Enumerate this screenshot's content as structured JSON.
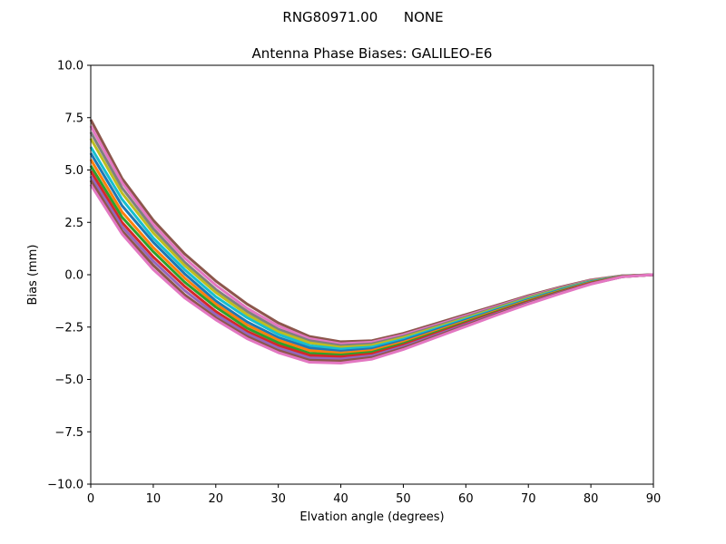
{
  "figure": {
    "suptitle": "RNG80971.00      NONE",
    "background": "#ffffff"
  },
  "chart_data": {
    "type": "line",
    "title": "Antenna Phase Biases: GALILEO-E6",
    "xlabel": "Elvation angle (degrees)",
    "ylabel": "Bias (mm)",
    "xlim": [
      0,
      90
    ],
    "ylim": [
      -10,
      10
    ],
    "xticks": [
      0,
      10,
      20,
      30,
      40,
      50,
      60,
      70,
      80,
      90
    ],
    "xtick_labels": [
      "0",
      "10",
      "20",
      "30",
      "40",
      "50",
      "60",
      "70",
      "80",
      "90"
    ],
    "yticks": [
      -10,
      -7.5,
      -5,
      -2.5,
      0,
      2.5,
      5,
      7.5,
      10
    ],
    "ytick_labels": [
      "−10.0",
      "−7.5",
      "−5.0",
      "−2.5",
      "0.0",
      "2.5",
      "5.0",
      "7.5",
      "10.0"
    ],
    "grid": false,
    "legend": "none",
    "x": [
      0,
      5,
      10,
      15,
      20,
      25,
      30,
      35,
      40,
      45,
      50,
      55,
      60,
      65,
      70,
      75,
      80,
      85,
      90
    ],
    "series": [
      {
        "color": "#8c564b",
        "values": [
          7.4,
          4.6,
          2.6,
          1.0,
          -0.3,
          -1.4,
          -2.3,
          -2.95,
          -3.2,
          -3.15,
          -2.8,
          -2.35,
          -1.9,
          -1.45,
          -1.0,
          -0.6,
          -0.25,
          -0.05,
          0.0
        ]
      },
      {
        "color": "#e377c2",
        "values": [
          7.1,
          4.4,
          2.4,
          0.8,
          -0.5,
          -1.6,
          -2.45,
          -3.05,
          -3.3,
          -3.22,
          -2.87,
          -2.42,
          -1.96,
          -1.5,
          -1.04,
          -0.63,
          -0.27,
          -0.06,
          0.0
        ]
      },
      {
        "color": "#7f7f7f",
        "values": [
          6.8,
          4.15,
          2.2,
          0.6,
          -0.7,
          -1.75,
          -2.6,
          -3.15,
          -3.38,
          -3.3,
          -2.94,
          -2.48,
          -2.02,
          -1.55,
          -1.08,
          -0.66,
          -0.29,
          -0.06,
          0.0
        ]
      },
      {
        "color": "#bcbd22",
        "values": [
          6.5,
          3.9,
          2.0,
          0.45,
          -0.85,
          -1.9,
          -2.72,
          -3.25,
          -3.46,
          -3.37,
          -3.0,
          -2.54,
          -2.07,
          -1.6,
          -1.12,
          -0.69,
          -0.31,
          -0.07,
          0.0
        ]
      },
      {
        "color": "#17becf",
        "values": [
          6.1,
          3.6,
          1.75,
          0.25,
          -1.05,
          -2.05,
          -2.85,
          -3.38,
          -3.55,
          -3.45,
          -3.08,
          -2.6,
          -2.12,
          -1.64,
          -1.16,
          -0.72,
          -0.33,
          -0.07,
          0.0
        ]
      },
      {
        "color": "#1f77b4",
        "values": [
          5.8,
          3.3,
          1.55,
          0.05,
          -1.25,
          -2.25,
          -3.0,
          -3.5,
          -3.65,
          -3.54,
          -3.15,
          -2.66,
          -2.17,
          -1.68,
          -1.2,
          -0.75,
          -0.35,
          -0.08,
          0.0
        ]
      },
      {
        "color": "#ff7f0e",
        "values": [
          5.5,
          3.0,
          1.3,
          -0.15,
          -1.4,
          -2.4,
          -3.12,
          -3.62,
          -3.74,
          -3.62,
          -3.22,
          -2.72,
          -2.22,
          -1.72,
          -1.23,
          -0.78,
          -0.37,
          -0.08,
          0.0
        ]
      },
      {
        "color": "#2ca02c",
        "values": [
          5.2,
          2.75,
          1.1,
          -0.35,
          -1.55,
          -2.55,
          -3.25,
          -3.75,
          -3.83,
          -3.7,
          -3.29,
          -2.78,
          -2.27,
          -1.76,
          -1.27,
          -0.81,
          -0.39,
          -0.09,
          0.0
        ]
      },
      {
        "color": "#d62728",
        "values": [
          4.95,
          2.5,
          0.85,
          -0.55,
          -1.75,
          -2.7,
          -3.38,
          -3.85,
          -3.92,
          -3.78,
          -3.36,
          -2.84,
          -2.32,
          -1.8,
          -1.3,
          -0.84,
          -0.41,
          -0.09,
          0.0
        ]
      },
      {
        "color": "#9467bd",
        "values": [
          4.7,
          2.3,
          0.65,
          -0.75,
          -1.9,
          -2.82,
          -3.5,
          -3.97,
          -4.02,
          -3.87,
          -3.43,
          -2.9,
          -2.37,
          -1.84,
          -1.34,
          -0.87,
          -0.43,
          -0.1,
          0.0
        ]
      },
      {
        "color": "#8c564b",
        "values": [
          4.5,
          2.1,
          0.45,
          -0.95,
          -2.05,
          -2.95,
          -3.62,
          -4.08,
          -4.12,
          -3.95,
          -3.5,
          -2.96,
          -2.42,
          -1.88,
          -1.37,
          -0.89,
          -0.44,
          -0.1,
          0.0
        ]
      },
      {
        "color": "#e377c2",
        "values": [
          4.3,
          1.95,
          0.25,
          -1.1,
          -2.15,
          -3.05,
          -3.72,
          -4.18,
          -4.22,
          -4.03,
          -3.57,
          -3.02,
          -2.47,
          -1.92,
          -1.4,
          -0.91,
          -0.45,
          -0.1,
          0.0
        ]
      }
    ]
  }
}
